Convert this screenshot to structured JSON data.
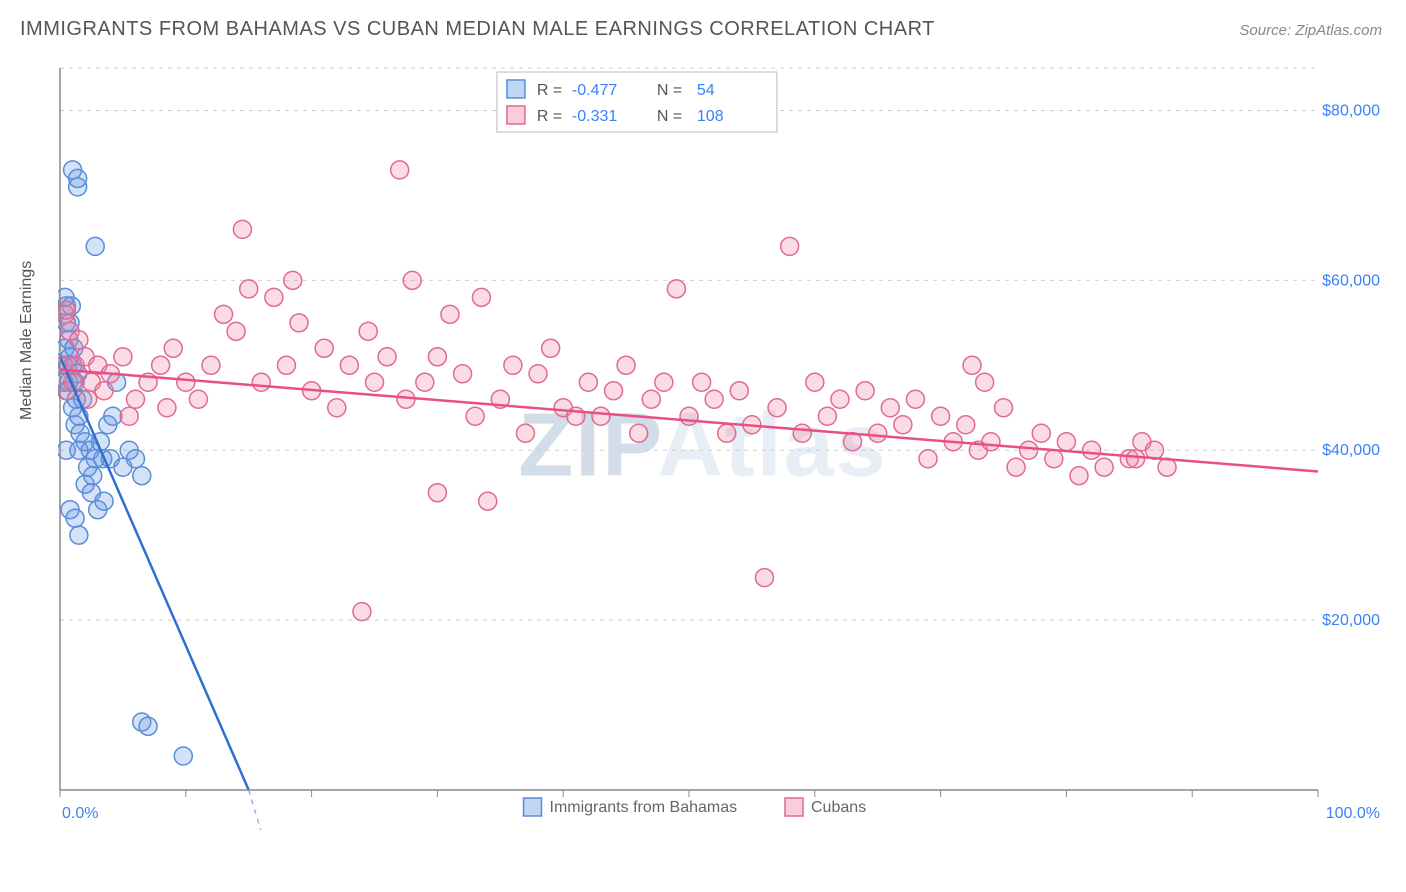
{
  "title": "IMMIGRANTS FROM BAHAMAS VS CUBAN MEDIAN MALE EARNINGS CORRELATION CHART",
  "source_label": "Source:",
  "source_value": "ZipAtlas.com",
  "ylabel": "Median Male Earnings",
  "watermark": "ZIPAtlas",
  "chart": {
    "type": "scatter",
    "xlim": [
      0,
      100
    ],
    "ylim": [
      0,
      85000
    ],
    "x_axis": {
      "min_label": "0.0%",
      "max_label": "100.0%",
      "tick_positions": [
        0,
        10,
        20,
        30,
        40,
        50,
        60,
        70,
        80,
        90,
        100
      ]
    },
    "y_axis": {
      "ticks": [
        20000,
        40000,
        60000,
        80000
      ],
      "tick_labels": [
        "$20,000",
        "$40,000",
        "$60,000",
        "$80,000"
      ]
    },
    "grid_color": "#cfcfcf",
    "background_color": "#ffffff",
    "axis_color": "#888888",
    "label_color": "#3b82f6",
    "marker_radius": 9,
    "marker_stroke_width": 1.5,
    "series": [
      {
        "name": "Immigrants from Bahamas",
        "fill": "rgba(100,150,230,0.28)",
        "stroke": "#5b8dd6",
        "trend_color": "#2f6fd0",
        "trend": {
          "x1": 0,
          "y1": 51000,
          "x2": 15,
          "y2": 0
        },
        "points": [
          [
            0.3,
            50000
          ],
          [
            0.4,
            52000
          ],
          [
            0.5,
            55000
          ],
          [
            0.5,
            57000
          ],
          [
            0.6,
            50000
          ],
          [
            0.6,
            47000
          ],
          [
            0.7,
            53000
          ],
          [
            0.7,
            48000
          ],
          [
            0.8,
            51000
          ],
          [
            0.8,
            55000
          ],
          [
            0.9,
            57000
          ],
          [
            1.0,
            50000
          ],
          [
            1.0,
            45000
          ],
          [
            1.1,
            52000
          ],
          [
            1.2,
            48000
          ],
          [
            1.2,
            43000
          ],
          [
            1.3,
            46000
          ],
          [
            1.4,
            49000
          ],
          [
            1.5,
            40000
          ],
          [
            1.5,
            44000
          ],
          [
            1.6,
            42000
          ],
          [
            1.8,
            46000
          ],
          [
            2.0,
            41000
          ],
          [
            2.0,
            36000
          ],
          [
            2.2,
            38000
          ],
          [
            2.4,
            40000
          ],
          [
            2.5,
            35000
          ],
          [
            2.6,
            37000
          ],
          [
            2.8,
            39000
          ],
          [
            3.0,
            33000
          ],
          [
            3.2,
            41000
          ],
          [
            3.4,
            39000
          ],
          [
            3.5,
            34000
          ],
          [
            3.8,
            43000
          ],
          [
            4.0,
            39000
          ],
          [
            4.2,
            44000
          ],
          [
            4.5,
            48000
          ],
          [
            5.0,
            38000
          ],
          [
            5.5,
            40000
          ],
          [
            6.0,
            39000
          ],
          [
            6.5,
            37000
          ],
          [
            1.0,
            73000
          ],
          [
            1.4,
            71000
          ],
          [
            1.4,
            72000
          ],
          [
            2.8,
            64000
          ],
          [
            0.4,
            58000
          ],
          [
            0.8,
            33000
          ],
          [
            1.2,
            32000
          ],
          [
            1.5,
            30000
          ],
          [
            6.5,
            8000
          ],
          [
            7.0,
            7500
          ],
          [
            9.8,
            4000
          ],
          [
            0.3,
            48000
          ],
          [
            0.5,
            40000
          ]
        ]
      },
      {
        "name": "Cubans",
        "fill": "rgba(240,130,160,0.28)",
        "stroke": "#e06a93",
        "trend_color": "#e94f86",
        "trend": {
          "x1": 0,
          "y1": 49500,
          "x2": 100,
          "y2": 37500
        },
        "points": [
          [
            0.3,
            50000
          ],
          [
            0.4,
            56000
          ],
          [
            0.5,
            56500
          ],
          [
            0.5,
            47000
          ],
          [
            0.8,
            54000
          ],
          [
            1.0,
            48000
          ],
          [
            1.2,
            50000
          ],
          [
            1.5,
            53000
          ],
          [
            2.0,
            51000
          ],
          [
            2.2,
            46000
          ],
          [
            2.5,
            48000
          ],
          [
            3.0,
            50000
          ],
          [
            3.5,
            47000
          ],
          [
            4.0,
            49000
          ],
          [
            5.0,
            51000
          ],
          [
            5.5,
            44000
          ],
          [
            6.0,
            46000
          ],
          [
            7.0,
            48000
          ],
          [
            8.0,
            50000
          ],
          [
            8.5,
            45000
          ],
          [
            9.0,
            52000
          ],
          [
            10.0,
            48000
          ],
          [
            11.0,
            46000
          ],
          [
            12.0,
            50000
          ],
          [
            13.0,
            56000
          ],
          [
            14.0,
            54000
          ],
          [
            14.5,
            66000
          ],
          [
            15.0,
            59000
          ],
          [
            16.0,
            48000
          ],
          [
            17.0,
            58000
          ],
          [
            18.0,
            50000
          ],
          [
            18.5,
            60000
          ],
          [
            19.0,
            55000
          ],
          [
            20.0,
            47000
          ],
          [
            21.0,
            52000
          ],
          [
            22.0,
            45000
          ],
          [
            23.0,
            50000
          ],
          [
            24.0,
            21000
          ],
          [
            24.5,
            54000
          ],
          [
            25.0,
            48000
          ],
          [
            26.0,
            51000
          ],
          [
            27.0,
            73000
          ],
          [
            27.5,
            46000
          ],
          [
            28.0,
            60000
          ],
          [
            29.0,
            48000
          ],
          [
            30.0,
            51000
          ],
          [
            30.0,
            35000
          ],
          [
            31.0,
            56000
          ],
          [
            32.0,
            49000
          ],
          [
            33.0,
            44000
          ],
          [
            33.5,
            58000
          ],
          [
            34.0,
            34000
          ],
          [
            35.0,
            46000
          ],
          [
            36.0,
            50000
          ],
          [
            37.0,
            42000
          ],
          [
            38.0,
            49000
          ],
          [
            39.0,
            52000
          ],
          [
            40.0,
            45000
          ],
          [
            41.0,
            44000
          ],
          [
            42.0,
            48000
          ],
          [
            43.0,
            44000
          ],
          [
            44.0,
            47000
          ],
          [
            45.0,
            50000
          ],
          [
            46.0,
            42000
          ],
          [
            47.0,
            46000
          ],
          [
            48.0,
            48000
          ],
          [
            49.0,
            59000
          ],
          [
            50.0,
            44000
          ],
          [
            51.0,
            48000
          ],
          [
            52.0,
            46000
          ],
          [
            53.0,
            42000
          ],
          [
            54.0,
            47000
          ],
          [
            55.0,
            43000
          ],
          [
            56.0,
            25000
          ],
          [
            57.0,
            45000
          ],
          [
            58.0,
            64000
          ],
          [
            59.0,
            42000
          ],
          [
            60.0,
            48000
          ],
          [
            61.0,
            44000
          ],
          [
            62.0,
            46000
          ],
          [
            63.0,
            41000
          ],
          [
            64.0,
            47000
          ],
          [
            65.0,
            42000
          ],
          [
            66.0,
            45000
          ],
          [
            67.0,
            43000
          ],
          [
            68.0,
            46000
          ],
          [
            69.0,
            39000
          ],
          [
            70.0,
            44000
          ],
          [
            71.0,
            41000
          ],
          [
            72.0,
            43000
          ],
          [
            72.5,
            50000
          ],
          [
            73.0,
            40000
          ],
          [
            73.5,
            48000
          ],
          [
            74.0,
            41000
          ],
          [
            75.0,
            45000
          ],
          [
            76.0,
            38000
          ],
          [
            77.0,
            40000
          ],
          [
            78.0,
            42000
          ],
          [
            79.0,
            39000
          ],
          [
            80.0,
            41000
          ],
          [
            81.0,
            37000
          ],
          [
            82.0,
            40000
          ],
          [
            83.0,
            38000
          ],
          [
            85.0,
            39000
          ],
          [
            85.5,
            39000
          ],
          [
            86.0,
            41000
          ],
          [
            87.0,
            40000
          ],
          [
            88.0,
            38000
          ]
        ]
      }
    ],
    "legend_top": {
      "box_fill_1": "rgba(100,150,230,0.4)",
      "box_stroke_1": "#5b8dd6",
      "box_fill_2": "rgba(240,130,160,0.4)",
      "box_stroke_2": "#e06a93",
      "r_label": "R =",
      "n_label": "N =",
      "rows": [
        {
          "r": "-0.477",
          "n": "54"
        },
        {
          "r": "-0.331",
          "n": "108"
        }
      ],
      "text_color_key": "#555555",
      "text_color_val": "#3b82f6",
      "border_color": "#bbbbbb"
    },
    "legend_bottom": {
      "items": [
        {
          "label": "Immigrants from Bahamas",
          "fill": "rgba(100,150,230,0.4)",
          "stroke": "#5b8dd6"
        },
        {
          "label": "Cubans",
          "fill": "rgba(240,130,160,0.4)",
          "stroke": "#e06a93"
        }
      ],
      "text_color": "#666666"
    }
  }
}
